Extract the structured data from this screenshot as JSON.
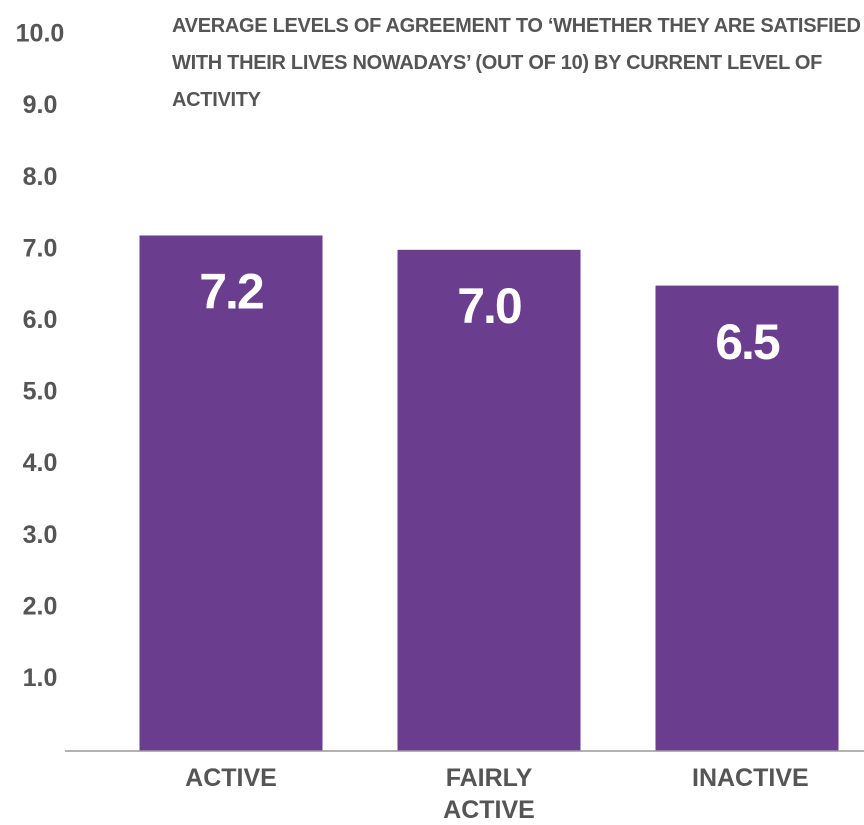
{
  "chart_data": {
    "type": "bar",
    "title": "AVERAGE LEVELS OF AGREEMENT TO ‘WHETHER THEY ARE SATISFIED WITH THEIR LIVES NOWADAYS’ (OUT OF 10) BY CURRENT LEVEL OF ACTIVITY",
    "categories": [
      "ACTIVE",
      "FAIRLY ACTIVE",
      "INACTIVE"
    ],
    "values": [
      7.2,
      7.0,
      6.5
    ],
    "value_labels": [
      "7.2",
      "7.0",
      "6.5"
    ],
    "color": "#6a3d8e",
    "ylim": [
      0,
      10
    ],
    "yticks": [
      {
        "value": 1,
        "label": "1.0"
      },
      {
        "value": 2,
        "label": "2.0"
      },
      {
        "value": 3,
        "label": "3.0"
      },
      {
        "value": 4,
        "label": "4.0"
      },
      {
        "value": 5,
        "label": "5.0"
      },
      {
        "value": 6,
        "label": "6.0"
      },
      {
        "value": 7,
        "label": "7.0"
      },
      {
        "value": 8,
        "label": "8.0"
      },
      {
        "value": 9,
        "label": "9.0"
      },
      {
        "value": 10,
        "label": "10.0"
      }
    ],
    "grid": false
  }
}
